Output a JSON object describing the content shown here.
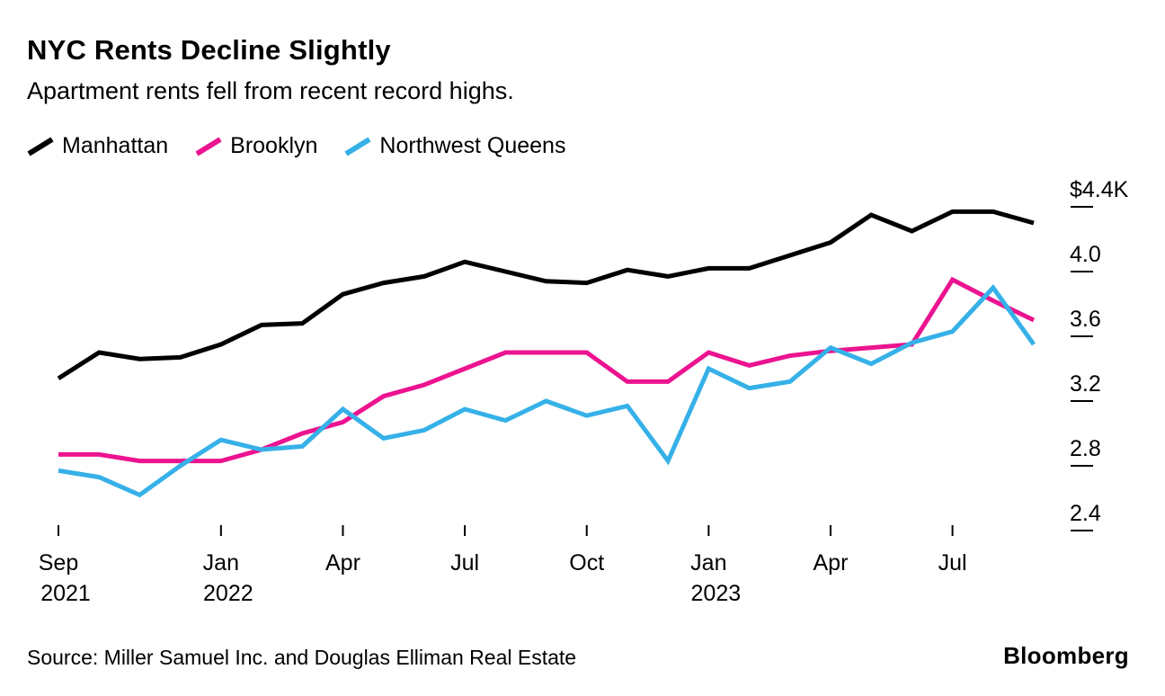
{
  "header": {
    "title": "NYC Rents Decline Slightly",
    "subtitle": "Apartment rents fell from recent record highs."
  },
  "footer": {
    "source": "Source: Miller Samuel Inc. and Douglas Elliman Real Estate",
    "brand": "Bloomberg"
  },
  "chart_data": {
    "type": "line",
    "title": "NYC Rents Decline Slightly",
    "subtitle": "Apartment rents fell from recent record highs.",
    "xlabel": "",
    "ylabel": "",
    "y_format": "USD thousands ($K)",
    "ylim": [
      2.4,
      4.4
    ],
    "grid": false,
    "legend_position": "top-left",
    "x_months": [
      "2021-09",
      "2021-10",
      "2021-11",
      "2021-12",
      "2022-01",
      "2022-02",
      "2022-03",
      "2022-04",
      "2022-05",
      "2022-06",
      "2022-07",
      "2022-08",
      "2022-09",
      "2022-10",
      "2022-11",
      "2022-12",
      "2023-01",
      "2023-02",
      "2023-03",
      "2023-04",
      "2023-05",
      "2023-06",
      "2023-07",
      "2023-08",
      "2023-09"
    ],
    "x_ticks": [
      {
        "month_index": 0,
        "line1": "Sep",
        "line2": "2021"
      },
      {
        "month_index": 4,
        "line1": "Jan",
        "line2": "2022"
      },
      {
        "month_index": 7,
        "line1": "Apr",
        "line2": ""
      },
      {
        "month_index": 10,
        "line1": "Jul",
        "line2": ""
      },
      {
        "month_index": 13,
        "line1": "Oct",
        "line2": ""
      },
      {
        "month_index": 16,
        "line1": "Jan",
        "line2": "2023"
      },
      {
        "month_index": 19,
        "line1": "Apr",
        "line2": ""
      },
      {
        "month_index": 22,
        "line1": "Jul",
        "line2": ""
      }
    ],
    "y_ticks": [
      {
        "value": 4.4,
        "label": "$4.4K"
      },
      {
        "value": 4.0,
        "label": "4.0"
      },
      {
        "value": 3.6,
        "label": "3.6"
      },
      {
        "value": 3.2,
        "label": "3.2"
      },
      {
        "value": 2.8,
        "label": "2.8"
      },
      {
        "value": 2.4,
        "label": "2.4"
      }
    ],
    "series": [
      {
        "id": "manhattan",
        "name": "Manhattan",
        "color": "#000000",
        "values": [
          3.34,
          3.5,
          3.46,
          3.47,
          3.55,
          3.67,
          3.68,
          3.86,
          3.93,
          3.97,
          4.06,
          4.0,
          3.94,
          3.93,
          4.01,
          3.97,
          4.02,
          4.02,
          4.1,
          4.18,
          4.35,
          4.25,
          4.37,
          4.37,
          4.3
        ]
      },
      {
        "id": "brooklyn",
        "name": "Brooklyn",
        "color": "#ec1390",
        "values": [
          2.87,
          2.87,
          2.83,
          2.83,
          2.83,
          2.9,
          3.0,
          3.07,
          3.23,
          3.3,
          3.4,
          3.5,
          3.5,
          3.5,
          3.32,
          3.32,
          3.5,
          3.42,
          3.48,
          3.51,
          3.53,
          3.55,
          3.95,
          3.82,
          3.7
        ]
      },
      {
        "id": "northwest-queens",
        "name": "Northwest Queens",
        "color": "#36b1e8",
        "values": [
          2.77,
          2.73,
          2.62,
          2.8,
          2.96,
          2.9,
          2.92,
          3.15,
          2.97,
          3.02,
          3.15,
          3.08,
          3.2,
          3.11,
          3.17,
          2.83,
          3.4,
          3.28,
          3.32,
          3.53,
          3.43,
          3.56,
          3.63,
          3.9,
          3.55
        ]
      }
    ]
  }
}
